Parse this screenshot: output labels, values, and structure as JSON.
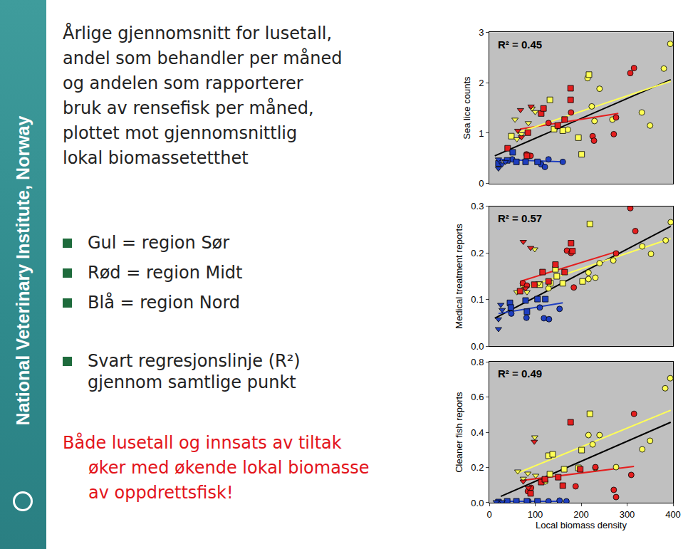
{
  "page": {
    "logo_text": "National Veterinary Institute, Norway",
    "title": [
      "Årlige gjennomsnitt for lusetall,",
      "andel som behandler per måned",
      "og andelen som rapporterer",
      "bruk av rensefisk per måned,",
      "plottet mot gjennomsnittlig",
      "lokal biomassetetthet"
    ],
    "bullets": [
      "Gul = region Sør",
      "Rød = region Midt",
      "Blå = region Nord"
    ],
    "regression_note": [
      "Svart regresjonslinje (R²)",
      "gjennom samtlige punkt"
    ],
    "conclusion": [
      "Både lusetall og innsats av tiltak",
      "øker med økende lokal biomasse",
      "av oppdrettsfisk!"
    ]
  },
  "chart_data": [
    {
      "type": "scatter",
      "ylabel": "Sea lice counts",
      "annotation": "R² = 0.45",
      "tick_labels": "y",
      "xlim": [
        0,
        400
      ],
      "ylim": [
        0,
        3
      ],
      "yticks": [
        0,
        1,
        2,
        3
      ],
      "series": [
        {
          "color": "#ffff55",
          "marker": "circle",
          "x": [
            171,
            214,
            223,
            229,
            240,
            268,
            332,
            350,
            380,
            394
          ],
          "values": [
            1.07,
            2.09,
            1.53,
            1.24,
            1.88,
            1.27,
            1.41,
            1.15,
            2.28,
            2.77
          ]
        },
        {
          "color": "#ffff55",
          "marker": "square",
          "x": [
            48,
            132,
            141,
            160,
            194,
            201,
            217
          ],
          "values": [
            0.94,
            1.66,
            1.08,
            1.05,
            0.91,
            0.58,
            2.16
          ]
        },
        {
          "color": "#ffff55",
          "marker": "triangle-down",
          "x": [
            56,
            70,
            93,
            100,
            85,
            60
          ],
          "values": [
            1.27,
            0.98,
            1.49,
            1.42,
            1.2,
            0.88
          ]
        },
        {
          "color": "#e41e1e",
          "marker": "circle",
          "x": [
            81,
            90,
            129,
            178,
            225,
            228,
            271,
            276,
            307,
            315
          ],
          "values": [
            0.58,
            0.55,
            1.2,
            1.41,
            0.94,
            0.85,
            0.98,
            1.31,
            2.19,
            2.29
          ]
        },
        {
          "color": "#e41e1e",
          "marker": "square",
          "x": [
            40,
            82,
            84,
            113,
            118,
            149,
            164,
            177,
            177
          ],
          "values": [
            0.7,
            0.55,
            1.01,
            1.39,
            1.49,
            1.15,
            1.27,
            1.66,
            1.89
          ]
        },
        {
          "color": "#e41e1e",
          "marker": "triangle-down",
          "x": [
            62,
            68,
            91,
            70
          ],
          "values": [
            1.05,
            1.46,
            1.53,
            0.92
          ]
        },
        {
          "color": "#1f3fc0",
          "marker": "circle",
          "x": [
            50,
            113,
            121,
            129,
            160
          ],
          "values": [
            0.48,
            0.38,
            0.33,
            0.48,
            0.43
          ]
        },
        {
          "color": "#1f3fc0",
          "marker": "square",
          "x": [
            20,
            39,
            51,
            59,
            79,
            105
          ],
          "values": [
            0.4,
            0.46,
            0.62,
            0.43,
            0.43,
            0.43
          ]
        },
        {
          "color": "#1f3fc0",
          "marker": "triangle-down",
          "x": [
            20,
            20,
            28,
            35
          ],
          "values": [
            0.48,
            0.3,
            0.38,
            0.43
          ]
        },
        {
          "type": "line",
          "color": "#000000",
          "x": [
            12,
            395
          ],
          "values": [
            0.55,
            2.06
          ]
        },
        {
          "type": "line",
          "color": "#e41e1e",
          "x": [
            67,
            281
          ],
          "values": [
            1.08,
            1.39
          ]
        },
        {
          "type": "line",
          "color": "#ffff55",
          "x": [
            59,
            395
          ],
          "values": [
            1.0,
            2.03
          ]
        },
        {
          "type": "line",
          "color": "#1f3fc0",
          "x": [
            20,
            160
          ],
          "values": [
            0.48,
            0.43
          ]
        }
      ]
    },
    {
      "type": "scatter",
      "ylabel": "Medical treatment reports",
      "annotation": "R² = 0.57",
      "tick_labels": "y",
      "xlim": [
        0,
        400
      ],
      "ylim": [
        0,
        0.3
      ],
      "yticks": [
        {
          "value": 0,
          "label": "0.0"
        },
        0.1,
        0.2,
        0.3
      ],
      "series": [
        {
          "color": "#ffff55",
          "marker": "circle",
          "x": [
            129,
            216,
            216,
            231,
            240,
            270,
            333,
            352,
            384,
            395
          ],
          "values": [
            0.124,
            0.158,
            0.144,
            0.147,
            0.178,
            0.184,
            0.214,
            0.198,
            0.227,
            0.266
          ]
        },
        {
          "color": "#ffff55",
          "marker": "square",
          "x": [
            110,
            133,
            144,
            147,
            160,
            203,
            219
          ],
          "values": [
            0.132,
            0.135,
            0.165,
            0.15,
            0.135,
            0.139,
            0.262
          ]
        },
        {
          "color": "#ffff55",
          "marker": "triangle-down",
          "x": [
            60,
            74,
            82,
            99,
            108
          ],
          "values": [
            0.116,
            0.127,
            0.116,
            0.208,
            0.135
          ]
        },
        {
          "color": "#e41e1e",
          "marker": "circle",
          "x": [
            73,
            82,
            169,
            178,
            184,
            276,
            307,
            318
          ],
          "values": [
            0.135,
            0.13,
            0.205,
            0.2,
            0.126,
            0.199,
            0.296,
            0.247
          ]
        },
        {
          "color": "#e41e1e",
          "marker": "square",
          "x": [
            67,
            98,
            116,
            129,
            144,
            164,
            178,
            181
          ],
          "values": [
            0.118,
            0.132,
            0.159,
            0.139,
            0.175,
            0.159,
            0.221,
            0.204
          ]
        },
        {
          "color": "#e41e1e",
          "marker": "triangle-down",
          "x": [
            74,
            79,
            90
          ],
          "values": [
            0.224,
            0.124,
            0.211
          ]
        },
        {
          "color": "#1f3fc0",
          "marker": "circle",
          "x": [
            48,
            81,
            110,
            119,
            130,
            153
          ],
          "values": [
            0.07,
            0.061,
            0.083,
            0.06,
            0.058,
            0.08
          ]
        },
        {
          "color": "#1f3fc0",
          "marker": "square",
          "x": [
            45,
            47,
            79,
            82,
            105,
            122
          ],
          "values": [
            0.093,
            0.083,
            0.098,
            0.074,
            0.101,
            0.101
          ]
        },
        {
          "color": "#1f3fc0",
          "marker": "triangle-down",
          "x": [
            20,
            20,
            28,
            25
          ],
          "values": [
            0.037,
            0.058,
            0.078,
            0.089
          ]
        },
        {
          "type": "line",
          "color": "#000000",
          "x": [
            12,
            395
          ],
          "values": [
            0.06,
            0.257
          ]
        },
        {
          "type": "line",
          "color": "#e41e1e",
          "x": [
            67,
            281
          ],
          "values": [
            0.139,
            0.204
          ]
        },
        {
          "type": "line",
          "color": "#ffff55",
          "x": [
            59,
            395
          ],
          "values": [
            0.119,
            0.231
          ]
        },
        {
          "type": "line",
          "color": "#1f3fc0",
          "x": [
            20,
            160
          ],
          "values": [
            0.07,
            0.093
          ]
        }
      ]
    },
    {
      "type": "scatter",
      "ylabel": "Cleaner fish reports",
      "xlabel": "Local biomass density",
      "annotation": "R² = 0.49",
      "xlim": [
        0,
        400
      ],
      "xticks": [
        0,
        100,
        200,
        300,
        400
      ],
      "ylim": [
        0,
        0.8
      ],
      "yticks": [
        {
          "value": 0,
          "label": "0.0"
        },
        0.2,
        0.4,
        0.6,
        0.8
      ],
      "series": [
        {
          "color": "#ffff55",
          "marker": "circle",
          "x": [
            122,
            216,
            225,
            231,
            240,
            276,
            333,
            350,
            383,
            394
          ],
          "values": [
            0.121,
            0.384,
            0.331,
            0.198,
            0.384,
            0.202,
            0.303,
            0.352,
            0.65,
            0.707
          ]
        },
        {
          "color": "#ffff55",
          "marker": "square",
          "x": [
            129,
            138,
            163,
            194,
            201,
            219,
            132
          ],
          "values": [
            0.267,
            0.275,
            0.19,
            0.198,
            0.299,
            0.505,
            0.162
          ]
        },
        {
          "color": "#ffff55",
          "marker": "triangle-down",
          "x": [
            62,
            74,
            84,
            99,
            101
          ],
          "values": [
            0.178,
            0.137,
            0.166,
            0.372,
            0.154
          ]
        },
        {
          "color": "#e41e1e",
          "marker": "circle",
          "x": [
            84,
            91,
            188,
            231,
            271,
            276,
            309,
            315
          ],
          "values": [
            0.065,
            0.085,
            0.093,
            0.202,
            0.073,
            0.032,
            0.158,
            0.505
          ]
        },
        {
          "color": "#e41e1e",
          "marker": "square",
          "x": [
            90,
            113,
            121,
            150,
            160,
            177,
            198
          ],
          "values": [
            0.053,
            0.117,
            0.133,
            0.145,
            0.097,
            0.457,
            0.19
          ]
        },
        {
          "color": "#e41e1e",
          "marker": "triangle-down",
          "x": [
            74,
            85,
            98
          ],
          "values": [
            0.121,
            0.085,
            0.347
          ]
        },
        {
          "color": "#1f3fc0",
          "marker": "circle",
          "x": [
            85,
            129,
            153,
            168
          ],
          "values": [
            0.008,
            0.008,
            0.012,
            0.008
          ]
        },
        {
          "color": "#1f3fc0",
          "marker": "square",
          "x": [
            20,
            39,
            59,
            82,
            105
          ],
          "values": [
            0.004,
            0.008,
            0.008,
            0.008,
            0.008
          ]
        },
        {
          "color": "#1f3fc0",
          "marker": "triangle-down",
          "x": [
            15,
            28
          ],
          "values": [
            0.004,
            0.004
          ]
        },
        {
          "type": "line",
          "color": "#000000",
          "x": [
            25,
            395
          ],
          "values": [
            0.036,
            0.457
          ]
        },
        {
          "type": "line",
          "color": "#e41e1e",
          "x": [
            67,
            315
          ],
          "values": [
            0.125,
            0.206
          ]
        },
        {
          "type": "line",
          "color": "#ffff55",
          "x": [
            59,
            395
          ],
          "values": [
            0.166,
            0.525
          ]
        },
        {
          "type": "line",
          "color": "#1f3fc0",
          "x": [
            20,
            160
          ],
          "values": [
            0.008,
            0.008
          ]
        }
      ]
    }
  ]
}
